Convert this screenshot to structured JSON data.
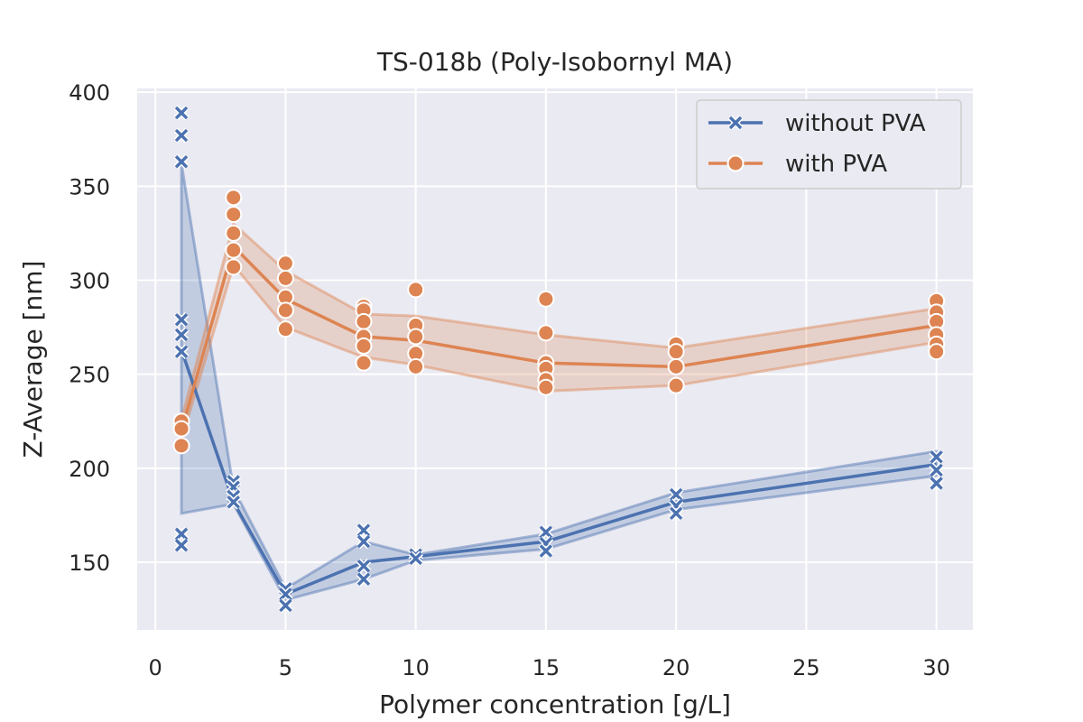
{
  "chart_data": {
    "type": "line",
    "title": "TS-018b (Poly-Isobornyl MA)",
    "xlabel": "Polymer concentration [g/L]",
    "ylabel": "Z-Average [nm]",
    "xlim": [
      -0.7,
      31.4
    ],
    "ylim": [
      114,
      402
    ],
    "xticks": [
      0,
      5,
      10,
      15,
      20,
      25,
      30
    ],
    "yticks": [
      150,
      200,
      250,
      300,
      350,
      400
    ],
    "grid": true,
    "legend": "top-right",
    "series": [
      {
        "name": "without PVA",
        "color": "#4c72b0",
        "marker": "x",
        "x": [
          1,
          3,
          5,
          8,
          10,
          15,
          20,
          30
        ],
        "y": [
          263,
          182,
          133,
          150,
          153,
          161,
          182,
          202
        ],
        "band_low": [
          176,
          181,
          130,
          141,
          151,
          157,
          178,
          196
        ],
        "band_high": [
          362,
          189,
          136,
          161,
          154,
          165,
          187,
          209
        ],
        "points": [
          [
            1,
            389
          ],
          [
            1,
            377
          ],
          [
            1,
            363
          ],
          [
            1,
            279
          ],
          [
            1,
            271
          ],
          [
            1,
            262
          ],
          [
            1,
            165
          ],
          [
            1,
            159
          ],
          [
            3,
            193
          ],
          [
            3,
            190
          ],
          [
            3,
            185
          ],
          [
            3,
            182
          ],
          [
            5,
            136
          ],
          [
            5,
            133
          ],
          [
            5,
            127
          ],
          [
            8,
            167
          ],
          [
            8,
            161
          ],
          [
            8,
            148
          ],
          [
            8,
            141
          ],
          [
            10,
            154
          ],
          [
            10,
            152
          ],
          [
            15,
            166
          ],
          [
            15,
            160
          ],
          [
            15,
            156
          ],
          [
            20,
            186
          ],
          [
            20,
            180
          ],
          [
            20,
            176
          ],
          [
            30,
            206
          ],
          [
            30,
            199
          ],
          [
            30,
            192
          ]
        ]
      },
      {
        "name": "with PVA",
        "color": "#dd8452",
        "marker": "o",
        "x": [
          1,
          3,
          5,
          8,
          10,
          15,
          20,
          30
        ],
        "y": [
          220,
          318,
          290,
          270,
          268,
          256,
          254,
          276
        ],
        "band_low": [
          215,
          308,
          275,
          259,
          255,
          241,
          244,
          267
        ],
        "band_high": [
          226,
          330,
          305,
          282,
          281,
          271,
          264,
          285
        ],
        "points": [
          [
            1,
            225
          ],
          [
            1,
            221
          ],
          [
            1,
            212
          ],
          [
            3,
            344
          ],
          [
            3,
            335
          ],
          [
            3,
            325
          ],
          [
            3,
            316
          ],
          [
            3,
            307
          ],
          [
            5,
            309
          ],
          [
            5,
            301
          ],
          [
            5,
            291
          ],
          [
            5,
            284
          ],
          [
            5,
            274
          ],
          [
            8,
            286
          ],
          [
            8,
            284
          ],
          [
            8,
            278
          ],
          [
            8,
            270
          ],
          [
            8,
            265
          ],
          [
            8,
            256
          ],
          [
            10,
            295
          ],
          [
            10,
            276
          ],
          [
            10,
            270
          ],
          [
            10,
            261
          ],
          [
            10,
            254
          ],
          [
            15,
            290
          ],
          [
            15,
            272
          ],
          [
            15,
            256
          ],
          [
            15,
            253
          ],
          [
            15,
            247
          ],
          [
            15,
            243
          ],
          [
            20,
            266
          ],
          [
            20,
            262
          ],
          [
            20,
            254
          ],
          [
            20,
            244
          ],
          [
            30,
            289
          ],
          [
            30,
            283
          ],
          [
            30,
            278
          ],
          [
            30,
            271
          ],
          [
            30,
            266
          ],
          [
            30,
            262
          ]
        ]
      }
    ]
  }
}
